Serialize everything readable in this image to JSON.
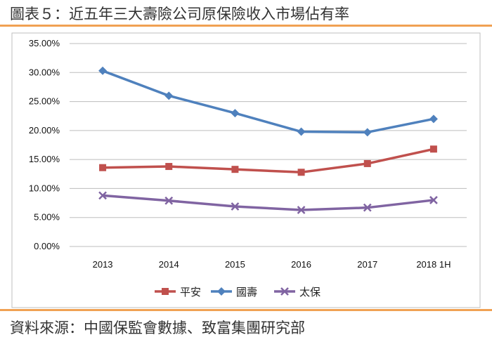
{
  "header": {
    "title": "圖表５：近五年三大壽險公司原保險收入市場佔有率"
  },
  "footer": {
    "source": "資料來源：中國保監會數據、致富集團研究部"
  },
  "chart_data": {
    "type": "line",
    "categories": [
      "2013",
      "2014",
      "2015",
      "2016",
      "2017",
      "2018 1H"
    ],
    "ylim": [
      0,
      35
    ],
    "yticks": [
      0,
      5,
      10,
      15,
      20,
      25,
      30,
      35
    ],
    "ytick_labels": [
      "0.00%",
      "5.00%",
      "10.00%",
      "15.00%",
      "20.00%",
      "25.00%",
      "30.00%",
      "35.00%"
    ],
    "grid": true,
    "legend_position": "bottom",
    "series": [
      {
        "name": "平安",
        "values": [
          13.6,
          13.8,
          13.3,
          12.8,
          14.3,
          16.8
        ],
        "color": "#c0504d",
        "marker": "square"
      },
      {
        "name": "國壽",
        "values": [
          30.3,
          26.0,
          23.0,
          19.8,
          19.7,
          22.0
        ],
        "color": "#4f81bd",
        "marker": "diamond"
      },
      {
        "name": "太保",
        "values": [
          8.8,
          7.9,
          6.9,
          6.3,
          6.7,
          8.0
        ],
        "color": "#8064a2",
        "marker": "x"
      }
    ]
  }
}
